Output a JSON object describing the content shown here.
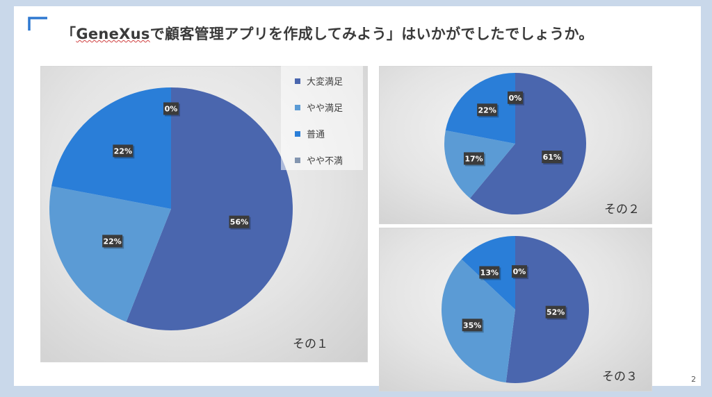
{
  "slide": {
    "title_prefix": "「",
    "title_brand": "GeneXus",
    "title_rest": "で顧客管理アプリを作成してみよう」はいかがでしたでしょうか。",
    "page_number": "2"
  },
  "legend": {
    "items": [
      {
        "label": "大変満足",
        "color": "#4a66ae"
      },
      {
        "label": "やや満足",
        "color": "#5b9bd5"
      },
      {
        "label": "普通",
        "color": "#2a7ed8"
      },
      {
        "label": "やや不満",
        "color": "#8496b0"
      }
    ]
  },
  "chart_data": [
    {
      "type": "pie",
      "caption": "その１",
      "categories": [
        "大変満足",
        "やや満足",
        "普通",
        "やや不満"
      ],
      "values": [
        56,
        22,
        22,
        0
      ],
      "labels": [
        "56%",
        "22%",
        "22%",
        "0%"
      ]
    },
    {
      "type": "pie",
      "caption": "その２",
      "categories": [
        "大変満足",
        "やや満足",
        "普通",
        "やや不満"
      ],
      "values": [
        61,
        17,
        22,
        0
      ],
      "labels": [
        "61%",
        "17%",
        "22%",
        "0%"
      ]
    },
    {
      "type": "pie",
      "caption": "その３",
      "categories": [
        "大変満足",
        "やや満足",
        "普通",
        "やや不満"
      ],
      "values": [
        52,
        35,
        13,
        0
      ],
      "labels": [
        "52%",
        "35%",
        "13%",
        "0%"
      ]
    }
  ]
}
